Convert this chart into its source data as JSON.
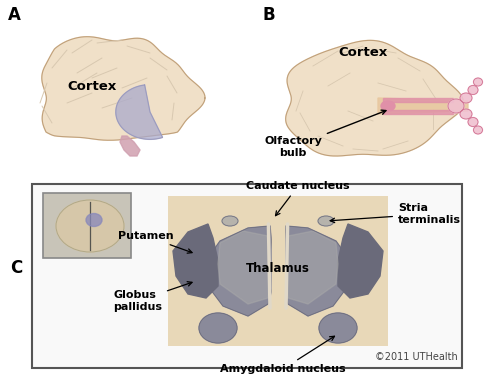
{
  "bg_color": "#ffffff",
  "label_A": "A",
  "label_B": "B",
  "label_C": "C",
  "cortex_label_A": "Cortex",
  "cortex_label_B": "Cortex",
  "olfactory_label": "Olfactory\nbulb",
  "caudate_label": "Caudate nucleus",
  "thalamus_label": "Thalamus",
  "putamen_label": "Putamen",
  "globus_label": "Globus\npallidus",
  "amygdaloid_label": "Amygdaloid nucleus",
  "stria_label": "Stria\nterminalis",
  "copyright": "©2011 UTHealth",
  "brain_color": "#f0e0c8",
  "brain_color2": "#ede0cc",
  "brain_outline": "#c0a07a",
  "gyri_color": "#d8c8b0",
  "blue_region": "#aaaacc",
  "blue_region2": "#9898bb",
  "pink_dark": "#cc6688",
  "pink_mid": "#e090a8",
  "pink_light": "#f0c0d0",
  "gray_dark": "#6a6a7a",
  "gray_mid": "#8a8a9a",
  "gray_light": "#aaaaaa",
  "subcortical_bg": "#e8d8b8",
  "inner_box_bg": "#c8c4b8",
  "inner_brain_bg": "#d8c8a8",
  "box_edge": "#555555",
  "font_bold": "bold",
  "fontsize_label": 12,
  "fontsize_annot": 8,
  "fontsize_copy": 7
}
